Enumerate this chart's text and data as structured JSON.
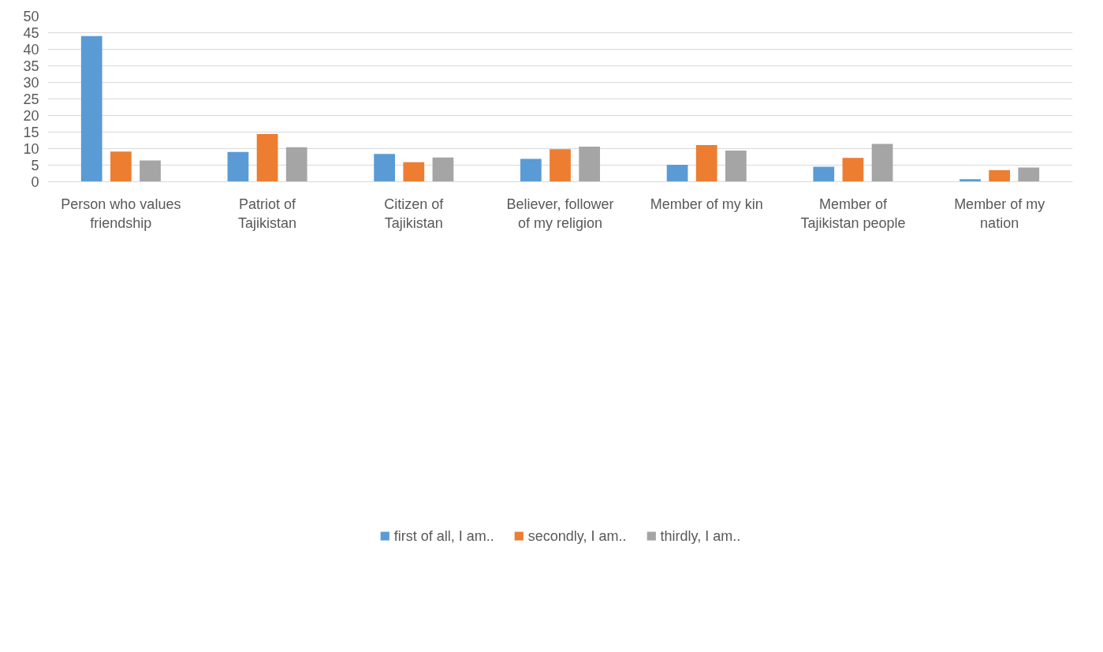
{
  "chart_data": {
    "type": "bar",
    "categories": [
      "Person who values friendship",
      "Patriot of Tajikistan",
      "Citizen of Tajikistan",
      "Believer, follower of my religion",
      "Member of my kin",
      "Member of Tajikistan people",
      "Member of my nation"
    ],
    "series": [
      {
        "name": "first of all, I am..",
        "color": "#5b9bd5",
        "values": [
          44,
          9.0,
          8.4,
          6.9,
          5.1,
          4.5,
          0.8
        ]
      },
      {
        "name": "secondly, I am..",
        "color": "#ed7d31",
        "values": [
          9.1,
          14.4,
          5.9,
          9.8,
          11.1,
          7.2,
          3.5
        ]
      },
      {
        "name": "thirdly, I am..",
        "color": "#a5a5a5",
        "values": [
          6.4,
          10.4,
          7.3,
          10.6,
          9.4,
          11.4,
          4.3
        ]
      }
    ],
    "ylim": [
      0,
      50
    ],
    "yticks": [
      0,
      5,
      10,
      15,
      20,
      25,
      30,
      35,
      40,
      45,
      50
    ],
    "grid": "y",
    "legend": "bottom"
  }
}
